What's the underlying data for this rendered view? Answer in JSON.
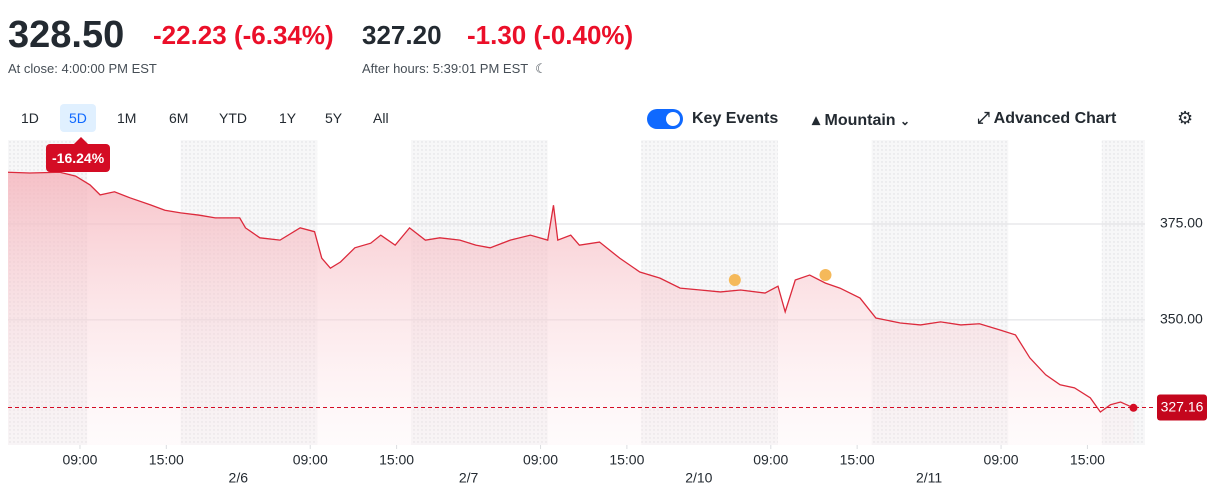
{
  "header": {
    "price": "328.50",
    "change": "-22.23",
    "change_pct": "(-6.34%)",
    "close_label": "At close: 4:00:00 PM EST",
    "ah_price": "327.20",
    "ah_change": "-1.30",
    "ah_change_pct": "(-0.40%)",
    "ah_label": "After hours: 5:39:01 PM EST"
  },
  "toolbar": {
    "ranges": [
      "1D",
      "5D",
      "1M",
      "6M",
      "YTD",
      "1Y",
      "5Y",
      "All"
    ],
    "selected": "5D",
    "key_events": "Key Events",
    "chart_style": "Mountain",
    "advanced": "Advanced Chart"
  },
  "chart_data": {
    "type": "area",
    "color": "#dc2a3c",
    "x": [
      0,
      1.5,
      3.6,
      4.7,
      5.7,
      6.4,
      7.4,
      8.5,
      9.9,
      10.9,
      12,
      13.3,
      14.4,
      16.1,
      16.5,
      17.5,
      18.9,
      20.3,
      21.3,
      21.8,
      22.4,
      23.1,
      24.1,
      25.2,
      25.9,
      26.9,
      27.9,
      29,
      30,
      31.4,
      32.5,
      33.5,
      34.9,
      36.3,
      37.5,
      37.9,
      38.2,
      39.1,
      39.7,
      41.1,
      42.5,
      43.9,
      45.3,
      46.7,
      48.1,
      49.5,
      50.9,
      52.6,
      53.5,
      54,
      54.7,
      55.7,
      56.8,
      57.8,
      59.2,
      60.3,
      62,
      63.4,
      64.8,
      66.2,
      67.5,
      68.9,
      70,
      71,
      72.1,
      73.1,
      74.1,
      75.2,
      75.9,
      76.6,
      77.3,
      78.2
    ],
    "values": [
      388.5,
      388.3,
      388.5,
      387.5,
      385.2,
      382.6,
      383.4,
      381.8,
      380,
      378.6,
      377.9,
      377.3,
      376.6,
      376.6,
      374,
      371.4,
      370.8,
      374,
      373,
      366.1,
      363.5,
      365.1,
      368.8,
      370,
      372.1,
      369.5,
      374,
      370.8,
      371.4,
      370.8,
      369.5,
      368.8,
      370.8,
      372.1,
      370.8,
      379.9,
      370.8,
      372.1,
      369.5,
      370.3,
      366.1,
      362.5,
      360.9,
      358.3,
      357.8,
      357.3,
      357.8,
      357,
      358.8,
      352.1,
      360.4,
      361.7,
      359.6,
      358.3,
      355.7,
      350.5,
      349.2,
      348.7,
      349.5,
      348.7,
      349,
      347.4,
      346.1,
      340.1,
      335.7,
      333.1,
      332.3,
      329.7,
      326,
      327.9,
      328.6,
      327.1
    ],
    "xlim": [
      0,
      79
    ],
    "ylim": [
      317.4,
      396.9
    ],
    "xticks": [
      {
        "value": 5,
        "label": "09:00"
      },
      {
        "value": 11,
        "label": "15:00"
      },
      {
        "value": 21,
        "label": "09:00"
      },
      {
        "value": 27,
        "label": "15:00"
      },
      {
        "value": 37,
        "label": "09:00"
      },
      {
        "value": 43,
        "label": "15:00"
      },
      {
        "value": 53,
        "label": "09:00"
      },
      {
        "value": 59,
        "label": "15:00"
      },
      {
        "value": 69,
        "label": "09:00"
      },
      {
        "value": 75,
        "label": "15:00"
      }
    ],
    "date_ticks": [
      {
        "value": 16,
        "label": "2/6"
      },
      {
        "value": 32,
        "label": "2/7"
      },
      {
        "value": 48,
        "label": "2/10"
      },
      {
        "value": 64,
        "label": "2/11"
      }
    ],
    "yticks": [
      {
        "value": 375,
        "label": "375.00"
      },
      {
        "value": 350,
        "label": "350.00"
      }
    ],
    "last_price": {
      "value": 327.16,
      "label": "327.16"
    },
    "change_badge": "-16.24%",
    "key_events": {
      "x": [
        50.5,
        56.8
      ],
      "values": [
        360.4,
        361.7
      ],
      "color": "#f5b95a"
    }
  }
}
